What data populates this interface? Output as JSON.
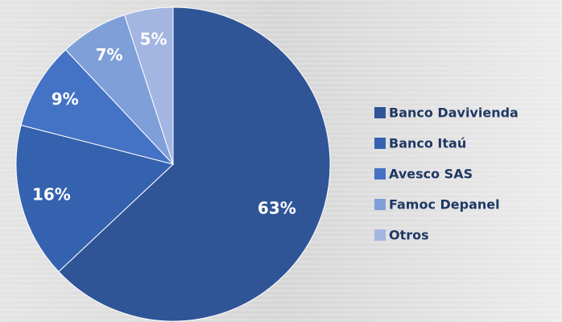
{
  "chart_data": {
    "type": "pie",
    "categories": [
      "Banco Davivienda",
      "Banco Itaú",
      "Avesco SAS",
      "Famoc Depanel",
      "Otros"
    ],
    "values": [
      63,
      16,
      9,
      7,
      5
    ],
    "value_labels": [
      "63%",
      "16%",
      "9%",
      "7%",
      "5%"
    ],
    "colors": [
      "#2f5597",
      "#3562ae",
      "#4472c4",
      "#7f9fd8",
      "#a3b5e1"
    ],
    "legend": "right"
  }
}
